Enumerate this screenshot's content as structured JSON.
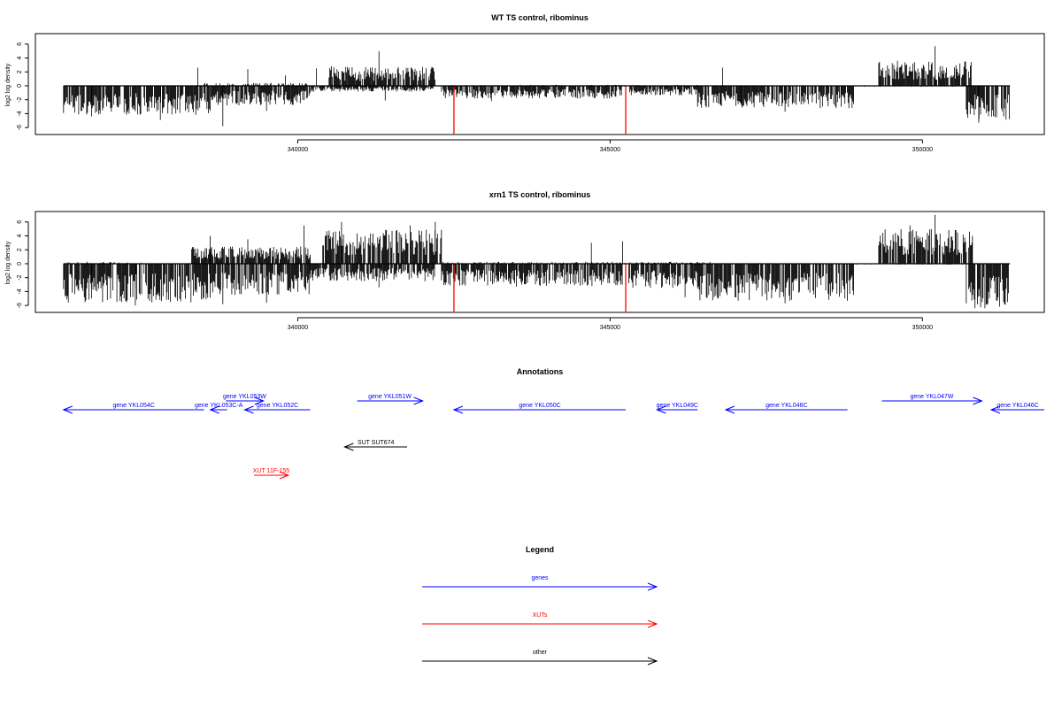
{
  "chart_data": [
    {
      "type": "bar",
      "title": "WT TS control, ribominus",
      "xlabel": "",
      "ylabel": "log2 log density",
      "xlim": [
        335800,
        351950
      ],
      "ylim": [
        -7,
        7.5
      ],
      "xticks": [
        340000,
        345000,
        350000
      ],
      "yticks": [
        -6,
        -4,
        -2,
        0,
        2,
        4,
        6
      ],
      "grid": false,
      "bar_color": "#000000",
      "marker_color": "#ff0000",
      "marker_positions": [
        342500,
        345250
      ],
      "series": [
        {
          "strand": "minus",
          "segments": [
            [
              336250,
              338600,
              -3.0
            ],
            [
              338600,
              340200,
              -2.0
            ],
            [
              340200,
              342200,
              -0.6
            ],
            [
              342300,
              345200,
              -1.3
            ],
            [
              345300,
              346400,
              -1.0
            ],
            [
              346400,
              348900,
              -2.3
            ],
            [
              348900,
              350700,
              -0.1
            ],
            [
              350700,
              351400,
              -3.5
            ]
          ],
          "peaks": [
            [
              336700,
              -4.4
            ],
            [
              337300,
              -4.0
            ],
            [
              337800,
              -4.9
            ],
            [
              338200,
              -3.6
            ],
            [
              338800,
              -5.8
            ],
            [
              339500,
              -3.6
            ],
            [
              341400,
              -2.1
            ],
            [
              343100,
              -2.2
            ],
            [
              346400,
              -3.0
            ],
            [
              347100,
              -2.7
            ],
            [
              347800,
              -3.7
            ],
            [
              348700,
              -3.0
            ],
            [
              350900,
              -5.3
            ],
            [
              351300,
              -4.4
            ]
          ]
        },
        {
          "strand": "plus",
          "segments": [
            [
              336300,
              337500,
              0.05
            ],
            [
              338500,
              340200,
              0.3
            ],
            [
              340500,
              342200,
              2.0
            ],
            [
              342300,
              346600,
              0.1
            ],
            [
              349300,
              350800,
              2.5
            ]
          ],
          "peaks": [
            [
              338400,
              2.6
            ],
            [
              339200,
              2.4
            ],
            [
              339800,
              1.5
            ],
            [
              340300,
              2.5
            ],
            [
              341300,
              5.0
            ],
            [
              342000,
              2.7
            ],
            [
              346800,
              2.6
            ],
            [
              349600,
              3.6
            ],
            [
              350200,
              5.7
            ],
            [
              350600,
              3.2
            ]
          ]
        }
      ]
    },
    {
      "type": "bar",
      "title": "xrn1 TS control, ribominus",
      "xlabel": "",
      "ylabel": "log2 log density",
      "xlim": [
        335800,
        351950
      ],
      "ylim": [
        -7,
        7.5
      ],
      "xticks": [
        340000,
        345000,
        350000
      ],
      "yticks": [
        -6,
        -4,
        -2,
        0,
        2,
        4,
        6
      ],
      "grid": false,
      "bar_color": "#000000",
      "marker_color": "#ff0000",
      "marker_positions": [
        342500,
        345250
      ],
      "series": [
        {
          "strand": "minus",
          "segments": [
            [
              336250,
              338600,
              -4.0
            ],
            [
              338600,
              340200,
              -3.3
            ],
            [
              340200,
              342200,
              -1.8
            ],
            [
              342300,
              345200,
              -2.3
            ],
            [
              345300,
              346400,
              -2.5
            ],
            [
              346400,
              348900,
              -3.8
            ],
            [
              348900,
              350700,
              -0.1
            ],
            [
              350700,
              351400,
              -4.6
            ]
          ],
          "peaks": [
            [
              336700,
              -5.0
            ],
            [
              337400,
              -6.0
            ],
            [
              337900,
              -5.2
            ],
            [
              338800,
              -5.8
            ],
            [
              339500,
              -5.6
            ],
            [
              341300,
              -3.4
            ],
            [
              342500,
              -4.6
            ],
            [
              343500,
              -3.3
            ],
            [
              346200,
              -4.8
            ],
            [
              347000,
              -4.8
            ],
            [
              347800,
              -5.7
            ],
            [
              348500,
              -5.2
            ],
            [
              351000,
              -6.4
            ],
            [
              351300,
              -5.5
            ]
          ]
        },
        {
          "strand": "plus",
          "segments": [
            [
              336300,
              337500,
              0.2
            ],
            [
              338300,
              340200,
              1.8
            ],
            [
              340400,
              342300,
              3.5
            ],
            [
              342300,
              346600,
              0.2
            ],
            [
              349300,
              350800,
              3.6
            ]
          ],
          "peaks": [
            [
              338600,
              4.0
            ],
            [
              339200,
              3.5
            ],
            [
              340100,
              5.5
            ],
            [
              340700,
              6.0
            ],
            [
              341800,
              5.5
            ],
            [
              342200,
              6.0
            ],
            [
              344700,
              3.0
            ],
            [
              345200,
              3.2
            ],
            [
              349800,
              5.5
            ],
            [
              350200,
              7.0
            ],
            [
              350800,
              4.0
            ]
          ]
        }
      ]
    }
  ],
  "annotations": {
    "title": "Annotations",
    "items": [
      {
        "label": "gene YKL054C",
        "kind": "gene",
        "strand": "-",
        "start": 336250,
        "end": 338500
      },
      {
        "label": "gene YKL053C-A",
        "kind": "gene",
        "strand": "-",
        "start": 338600,
        "end": 338870
      },
      {
        "label": "gene YKL053W",
        "kind": "gene",
        "strand": "+",
        "start": 338850,
        "end": 339450
      },
      {
        "label": "gene YKL052C",
        "kind": "gene",
        "strand": "-",
        "start": 339150,
        "end": 340200
      },
      {
        "label": "gene YKL051W",
        "kind": "gene",
        "strand": "+",
        "start": 340950,
        "end": 342000
      },
      {
        "label": "gene YKL050C",
        "kind": "gene",
        "strand": "-",
        "start": 342500,
        "end": 345250
      },
      {
        "label": "gene YKL049C",
        "kind": "gene",
        "strand": "-",
        "start": 345750,
        "end": 346400
      },
      {
        "label": "gene YKL048C",
        "kind": "gene",
        "strand": "-",
        "start": 346850,
        "end": 348800
      },
      {
        "label": "gene YKL047W",
        "kind": "gene",
        "strand": "+",
        "start": 349350,
        "end": 350950
      },
      {
        "label": "gene YKL046C",
        "kind": "gene",
        "strand": "-",
        "start": 351100,
        "end": 351950
      },
      {
        "label": "SUT SUT674",
        "kind": "other",
        "strand": "-",
        "start": 340750,
        "end": 341750
      },
      {
        "label": "XUT 11F-155",
        "kind": "xut",
        "strand": "+",
        "start": 339300,
        "end": 339850
      }
    ]
  },
  "legend": {
    "title": "Legend",
    "items": [
      {
        "label": "genes",
        "kind": "gene"
      },
      {
        "label": "XUTs",
        "kind": "xut"
      },
      {
        "label": "other",
        "kind": "other"
      }
    ]
  },
  "colors": {
    "gene": "#0000ff",
    "xut": "#ff0000",
    "other": "#000000",
    "axis": "#000000"
  }
}
